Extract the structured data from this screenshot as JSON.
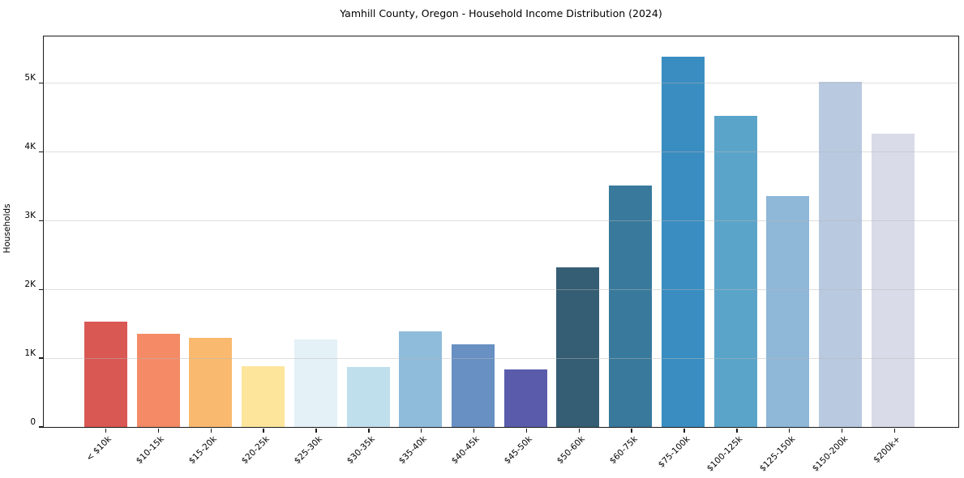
{
  "chart_data": {
    "type": "bar",
    "title": "Yamhill County, Oregon - Household Income Distribution (2024)",
    "xlabel": "",
    "ylabel": "Households",
    "categories": [
      "< $10k",
      "$10-15k",
      "$15-20k",
      "$20-25k",
      "$25-30k",
      "$30-35k",
      "$35-40k",
      "$40-45k",
      "$45-50k",
      "$50-60k",
      "$60-75k",
      "$75-100k",
      "$100-125k",
      "$125-150k",
      "$150-200k",
      "$200k+"
    ],
    "values": [
      1540,
      1360,
      1300,
      890,
      1275,
      875,
      1400,
      1205,
      835,
      2330,
      3530,
      5410,
      4540,
      3375,
      5040,
      4285
    ],
    "bar_colors": [
      "#d95854",
      "#f48a66",
      "#f9b96f",
      "#fde59c",
      "#e4f1f6",
      "#bfdfec",
      "#90bcdc",
      "#6890c2",
      "#5a5cab",
      "#355e74",
      "#38799c",
      "#3a8dc0",
      "#5ba4c9",
      "#8fb7d8",
      "#b8c9e0",
      "#d9dbe8"
    ],
    "ylim": [
      0,
      5700
    ],
    "yticks": [
      {
        "value": 0,
        "label": "0"
      },
      {
        "value": 1000,
        "label": "1K"
      },
      {
        "value": 2000,
        "label": "2K"
      },
      {
        "value": 3000,
        "label": "3K"
      },
      {
        "value": 4000,
        "label": "4K"
      },
      {
        "value": 5000,
        "label": "5K"
      }
    ],
    "grid": "horizontal-only",
    "legend": "none",
    "plot_background": "#ffffff"
  }
}
